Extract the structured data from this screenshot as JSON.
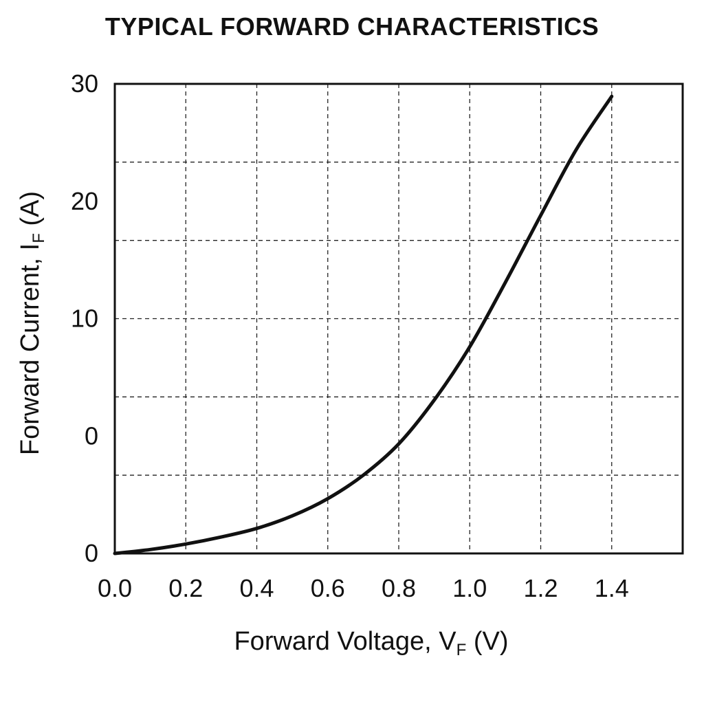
{
  "chart_data": {
    "type": "line",
    "title": "TYPICAL FORWARD CHARACTERISTICS",
    "xlabel": {
      "main": "Forward Voltage, V",
      "sub": "F",
      "unit": " (V)"
    },
    "ylabel": {
      "main": "Forward Current, I",
      "sub": "F",
      "unit": " (A)"
    },
    "xlim": [
      0.0,
      1.6
    ],
    "x_ticks": [
      0.0,
      0.2,
      0.4,
      0.6,
      0.8,
      1.0,
      1.2,
      1.4
    ],
    "x_tick_labels": [
      "0.0",
      "0.2",
      "0.4",
      "0.6",
      "0.8",
      "1.0",
      "1.2",
      "1.4"
    ],
    "y_tick_labels": [
      "0",
      "0",
      "10",
      "20",
      "30"
    ],
    "grid": true,
    "grid_style": "dashed",
    "line_color": "#111111",
    "series": [
      {
        "x": [
          0.0,
          0.1,
          0.2,
          0.3,
          0.4,
          0.5,
          0.6,
          0.7,
          0.8,
          0.9,
          1.0,
          1.1,
          1.2,
          1.3,
          1.4
        ],
        "y": [
          0.0,
          0.25,
          0.6,
          1.05,
          1.6,
          2.4,
          3.5,
          5.0,
          7.0,
          9.8,
          13.2,
          17.3,
          21.6,
          25.8,
          29.2
        ]
      }
    ]
  }
}
